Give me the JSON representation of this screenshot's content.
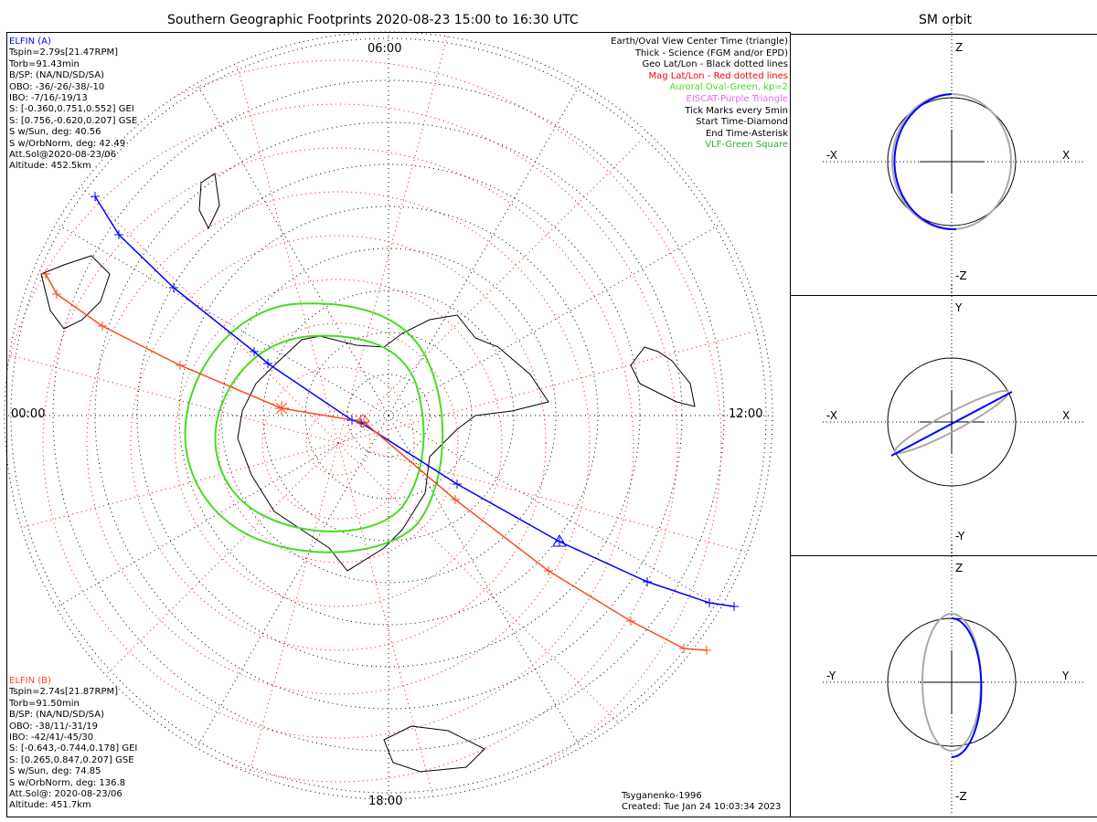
{
  "title": "Southern Geographic Footprints 2020-08-23 15:00 to 16:30 UTC",
  "sm_title": "SM orbit",
  "colors": {
    "elfin_a": "#0000ff",
    "elfin_b": "#ff4a1c",
    "mag_grid": "#ff0000",
    "aurora": "#44dd22",
    "eiscat": "#ee66ee",
    "vlf": "#33aa33"
  },
  "elfin_a": {
    "name": "ELFIN (A)",
    "lines": [
      "Tspin=2.79s[21.47RPM]",
      "Torb=91.43min",
      "B/SP: (NA/ND/SD/SA)",
      "OBO: -36/-26/-38/-10",
      "IBO: -7/16/-19/13",
      "S: [-0.360,0.751,0.552] GEI",
      "S: [0.756,-0.620,0.207] GSE",
      "S w/Sun, deg: 40.56",
      "S w/OrbNorm, deg: 42.49",
      "Att.Sol@2020-08-23/06",
      "Altitude: 452.5km"
    ]
  },
  "elfin_b": {
    "name": "ELFIN (B)",
    "lines": [
      "Tspin=2.74s[21.87RPM]",
      "Torb=91.50min",
      "B/SP: (NA/ND/SD/SA)",
      "OBO: -38/11/-31/19",
      "IBO: -42/41/-45/30",
      "S: [-0.643,-0.744,0.178] GEI",
      "S: [0.265,0.847,0.207] GSE",
      "S w/Sun, deg: 74.85",
      "S w/OrbNorm, deg: 136.8",
      "Att.Sol@: 2020-08-23/06",
      "Altitude: 451.7km"
    ]
  },
  "legend": [
    {
      "text": "Earth/Oval View Center Time (triangle)",
      "color": "#000000"
    },
    {
      "text": "Thick - Science (FGM and/or EPD)",
      "color": "#000000"
    },
    {
      "text": "Geo Lat/Lon - Black dotted lines",
      "color": "#000000"
    },
    {
      "text": "Mag Lat/Lon - Red dotted lines",
      "color": "#ff0000"
    },
    {
      "text": "Auroral Oval-Green, kp=2",
      "color": "#44dd22"
    },
    {
      "text": "EISCAT-Purple Triangle",
      "color": "#ee66ee"
    },
    {
      "text": "Tick Marks every 5min",
      "color": "#000000"
    },
    {
      "text": "Start Time-Diamond",
      "color": "#000000"
    },
    {
      "text": "End Time-Asterisk",
      "color": "#000000"
    },
    {
      "text": "VLF-Green Square",
      "color": "#33aa33"
    }
  ],
  "time_labels": {
    "top": "06:00",
    "left": "00:00",
    "right": "12:00",
    "bottom": "18:00"
  },
  "credits": {
    "model": "Tsyganenko-1996",
    "created": "Created: Tue Jan 24 10:03:34 2023"
  },
  "sm_panels": [
    {
      "up": "Z",
      "down": "-Z",
      "left": "-X",
      "right": "X"
    },
    {
      "up": "Y",
      "down": "-Y",
      "left": "-X",
      "right": "X"
    },
    {
      "up": "Z",
      "down": "-Z",
      "left": "-Y",
      "right": "Y"
    }
  ]
}
